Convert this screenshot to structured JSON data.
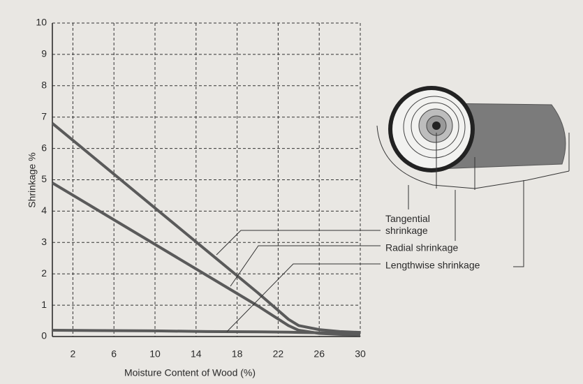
{
  "chart_data": {
    "type": "line",
    "x_label": "Moisture Content of Wood (%)",
    "y_label": "Shrinkage %",
    "x": [
      0,
      5,
      10,
      15,
      20,
      23,
      24,
      26,
      28,
      30
    ],
    "series": [
      {
        "name": "Tangential shrinkage",
        "color": "#5a5a5a",
        "values": [
          6.8,
          5.45,
          4.1,
          2.75,
          1.4,
          0.55,
          0.35,
          0.22,
          0.16,
          0.13
        ]
      },
      {
        "name": "Radial shrinkage",
        "color": "#5a5a5a",
        "values": [
          4.9,
          3.92,
          2.94,
          1.96,
          0.98,
          0.35,
          0.2,
          0.1,
          0.07,
          0.05
        ]
      },
      {
        "name": "Lengthwise shrinkage",
        "color": "#5a5a5a",
        "values": [
          0.2,
          0.19,
          0.18,
          0.16,
          0.15,
          0.14,
          0.13,
          0.12,
          0.11,
          0.1
        ]
      }
    ],
    "xlim": [
      0,
      30
    ],
    "ylim": [
      0,
      10
    ],
    "xticks": [
      2,
      6,
      10,
      14,
      18,
      22,
      26,
      30
    ],
    "yticks": [
      0,
      1,
      2,
      3,
      4,
      5,
      6,
      7,
      8,
      9,
      10
    ],
    "grid": true
  }
}
